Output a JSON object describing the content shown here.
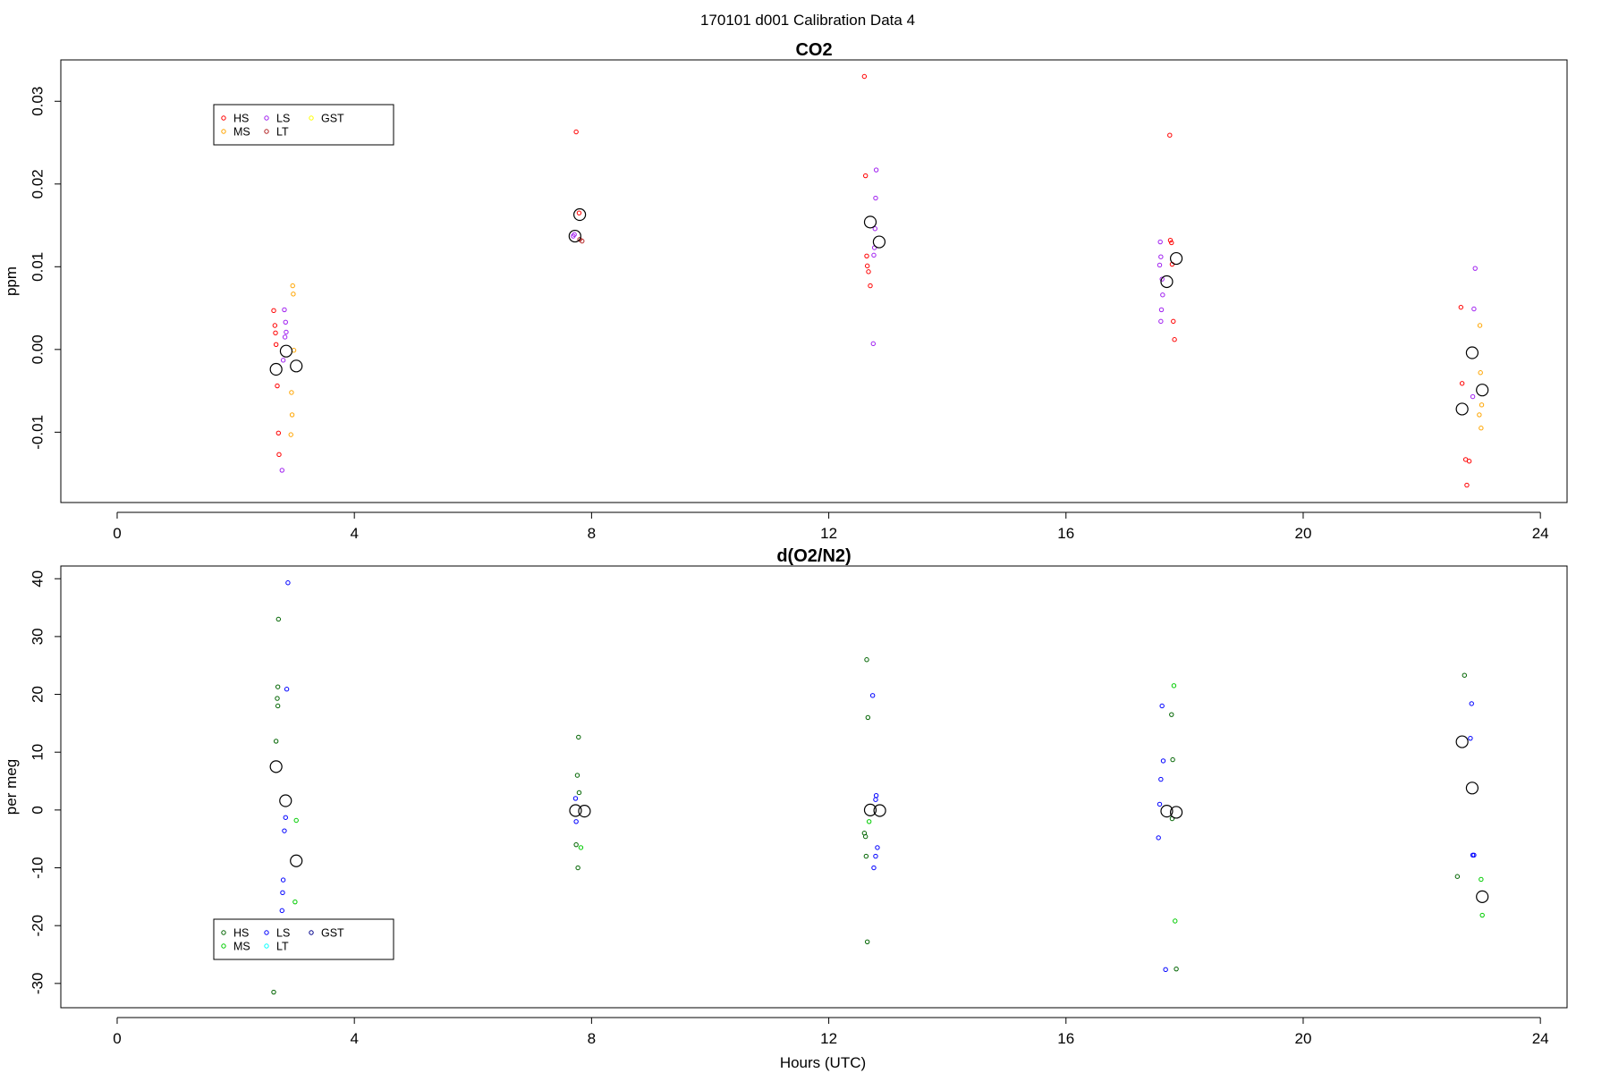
{
  "figure": {
    "title": "170101   d001   Calibration Data 4"
  },
  "chart_data": [
    {
      "type": "scatter",
      "title": "CO2",
      "xlabel": "",
      "ylabel": "ppm",
      "xlim": [
        -0.95,
        24.45
      ],
      "ylim": [
        -0.0185,
        0.035
      ],
      "xticks": [
        0,
        4,
        8,
        12,
        16,
        20,
        24
      ],
      "yticks": [
        -0.01,
        0.0,
        0.01,
        0.02,
        0.03
      ],
      "ytick_labels": [
        "-0.01",
        "0.00",
        "0.01",
        "0.02",
        "0.03"
      ],
      "grid": false,
      "legend_position": "top-left",
      "legend": [
        {
          "name": "HS",
          "color": "#ff0000"
        },
        {
          "name": "MS",
          "color": "#ffa500"
        },
        {
          "name": "LS",
          "color": "#a020f0"
        },
        {
          "name": "LT",
          "color": "#b22222"
        },
        {
          "name": "GST",
          "color": "#ffff00"
        }
      ],
      "series": [
        {
          "name": "HS",
          "color": "#ff0000",
          "points": [
            [
              2.64,
              0.0047
            ],
            [
              2.66,
              0.0029
            ],
            [
              2.67,
              0.002
            ],
            [
              2.68,
              0.0006
            ],
            [
              2.7,
              -0.0044
            ],
            [
              2.72,
              -0.0101
            ],
            [
              2.73,
              -0.0127
            ],
            [
              7.74,
              0.0263
            ],
            [
              7.79,
              0.0165
            ],
            [
              12.6,
              0.033
            ],
            [
              12.62,
              0.021
            ],
            [
              12.64,
              0.0113
            ],
            [
              12.65,
              0.0101
            ],
            [
              12.67,
              0.0094
            ],
            [
              12.7,
              0.0077
            ],
            [
              17.75,
              0.0259
            ],
            [
              17.76,
              0.0132
            ],
            [
              17.78,
              0.0129
            ],
            [
              17.79,
              0.0103
            ],
            [
              17.81,
              0.0034
            ],
            [
              17.83,
              0.0012
            ],
            [
              22.66,
              0.0051
            ],
            [
              22.68,
              -0.0041
            ],
            [
              22.74,
              -0.0133
            ],
            [
              22.76,
              -0.0164
            ],
            [
              22.8,
              -0.0135
            ]
          ]
        },
        {
          "name": "MS",
          "color": "#ffa500",
          "points": [
            [
              2.96,
              0.0077
            ],
            [
              2.97,
              0.0067
            ],
            [
              2.98,
              -0.0001
            ],
            [
              2.94,
              -0.0052
            ],
            [
              2.95,
              -0.0079
            ],
            [
              2.93,
              -0.0103
            ],
            [
              22.98,
              0.0029
            ],
            [
              22.99,
              -0.0028
            ],
            [
              23.01,
              -0.0067
            ],
            [
              22.97,
              -0.0079
            ],
            [
              23.0,
              -0.0095
            ]
          ]
        },
        {
          "name": "LS",
          "color": "#a020f0",
          "points": [
            [
              2.82,
              0.0048
            ],
            [
              2.84,
              0.0033
            ],
            [
              2.85,
              0.0021
            ],
            [
              2.83,
              0.0015
            ],
            [
              2.8,
              -0.0013
            ],
            [
              2.78,
              -0.0146
            ],
            [
              7.69,
              0.0137
            ],
            [
              7.71,
              0.0139
            ],
            [
              12.8,
              0.0217
            ],
            [
              12.79,
              0.0183
            ],
            [
              12.78,
              0.0146
            ],
            [
              12.77,
              0.0123
            ],
            [
              12.76,
              0.0114
            ],
            [
              12.75,
              0.0007
            ],
            [
              17.59,
              0.013
            ],
            [
              17.6,
              0.0112
            ],
            [
              17.58,
              0.0102
            ],
            [
              17.62,
              0.0085
            ],
            [
              17.63,
              0.0066
            ],
            [
              17.61,
              0.0048
            ],
            [
              17.6,
              0.0034
            ],
            [
              22.9,
              0.0098
            ],
            [
              22.88,
              0.0049
            ],
            [
              22.86,
              -0.0057
            ]
          ]
        },
        {
          "name": "LT",
          "color": "#b22222",
          "points": [
            [
              7.8,
              0.0133
            ],
            [
              7.84,
              0.0131
            ]
          ]
        },
        {
          "name": "GST",
          "color": "#ffff00",
          "points": []
        },
        {
          "name": "",
          "color": "#000000",
          "marker": "large",
          "points": [
            [
              2.68,
              -0.0024
            ],
            [
              2.85,
              -0.0002
            ],
            [
              3.02,
              -0.002
            ],
            [
              7.72,
              0.0137
            ],
            [
              7.8,
              0.0163
            ],
            [
              12.7,
              0.0154
            ],
            [
              12.85,
              0.013
            ],
            [
              17.7,
              0.0082
            ],
            [
              17.86,
              0.011
            ],
            [
              22.68,
              -0.0072
            ],
            [
              22.85,
              -0.0004
            ],
            [
              23.02,
              -0.0049
            ]
          ]
        }
      ]
    },
    {
      "type": "scatter",
      "title": "d(O2/N2)",
      "xlabel": "Hours (UTC)",
      "ylabel": "per meg",
      "xlim": [
        -0.95,
        24.45
      ],
      "ylim": [
        -34.2,
        42.2
      ],
      "xticks": [
        0,
        4,
        8,
        12,
        16,
        20,
        24
      ],
      "yticks": [
        -30,
        -20,
        -10,
        0,
        10,
        20,
        30,
        40
      ],
      "ytick_labels": [
        "-30",
        "-20",
        "-10",
        "0",
        "10",
        "20",
        "30",
        "40"
      ],
      "grid": false,
      "legend_position": "bottom-left",
      "legend": [
        {
          "name": "HS",
          "color": "#006400"
        },
        {
          "name": "MS",
          "color": "#00cc00"
        },
        {
          "name": "LS",
          "color": "#0000ff"
        },
        {
          "name": "LT",
          "color": "#00ffff"
        },
        {
          "name": "GST",
          "color": "#00008b"
        }
      ],
      "series": [
        {
          "name": "HS",
          "color": "#006400",
          "points": [
            [
              2.72,
              33.0
            ],
            [
              2.71,
              21.3
            ],
            [
              2.7,
              19.3
            ],
            [
              2.71,
              18.0
            ],
            [
              2.68,
              11.9
            ],
            [
              2.64,
              -31.5
            ],
            [
              7.78,
              12.6
            ],
            [
              7.76,
              6.0
            ],
            [
              7.79,
              3.0
            ],
            [
              7.74,
              -6.0
            ],
            [
              7.77,
              -10.0
            ],
            [
              12.64,
              26.0
            ],
            [
              12.66,
              16.0
            ],
            [
              12.6,
              -4.0
            ],
            [
              12.62,
              -4.6
            ],
            [
              12.63,
              -8.0
            ],
            [
              12.65,
              -22.8
            ],
            [
              17.78,
              16.5
            ],
            [
              17.8,
              8.7
            ],
            [
              17.79,
              -1.5
            ],
            [
              17.86,
              -27.5
            ],
            [
              22.72,
              23.3
            ],
            [
              22.6,
              -11.5
            ]
          ]
        },
        {
          "name": "MS",
          "color": "#00cc00",
          "points": [
            [
              3.02,
              -1.8
            ],
            [
              3.0,
              -15.9
            ],
            [
              7.82,
              -6.5
            ],
            [
              12.68,
              -2.0
            ],
            [
              17.82,
              21.5
            ],
            [
              17.84,
              -19.2
            ],
            [
              23.0,
              -12.0
            ],
            [
              23.02,
              -18.2
            ]
          ]
        },
        {
          "name": "LS",
          "color": "#0000ff",
          "points": [
            [
              2.88,
              39.3
            ],
            [
              2.86,
              20.9
            ],
            [
              2.84,
              -1.3
            ],
            [
              2.82,
              -3.6
            ],
            [
              2.8,
              -12.1
            ],
            [
              2.79,
              -14.3
            ],
            [
              2.78,
              -17.4
            ],
            [
              7.73,
              2.0
            ],
            [
              7.74,
              -2.0
            ],
            [
              12.74,
              19.8
            ],
            [
              12.8,
              2.5
            ],
            [
              12.79,
              1.8
            ],
            [
              12.82,
              -6.5
            ],
            [
              12.79,
              -8.0
            ],
            [
              12.76,
              -10.0
            ],
            [
              17.62,
              18.0
            ],
            [
              17.64,
              8.5
            ],
            [
              17.6,
              5.3
            ],
            [
              17.58,
              1.0
            ],
            [
              17.56,
              -4.8
            ],
            [
              17.68,
              -27.6
            ],
            [
              22.84,
              18.4
            ],
            [
              22.82,
              12.4
            ],
            [
              22.88,
              -7.8
            ],
            [
              22.86,
              -7.8
            ]
          ]
        },
        {
          "name": "LT",
          "color": "#00ffff",
          "points": []
        },
        {
          "name": "GST",
          "color": "#00008b",
          "points": []
        },
        {
          "name": "",
          "color": "#000000",
          "marker": "large",
          "points": [
            [
              2.68,
              7.5
            ],
            [
              2.84,
              1.6
            ],
            [
              3.02,
              -8.8
            ],
            [
              7.73,
              -0.1
            ],
            [
              7.88,
              -0.2
            ],
            [
              12.7,
              0.0
            ],
            [
              12.86,
              -0.1
            ],
            [
              17.7,
              -0.2
            ],
            [
              17.86,
              -0.4
            ],
            [
              22.68,
              11.8
            ],
            [
              22.85,
              3.8
            ],
            [
              23.02,
              -15.0
            ]
          ]
        }
      ]
    }
  ]
}
